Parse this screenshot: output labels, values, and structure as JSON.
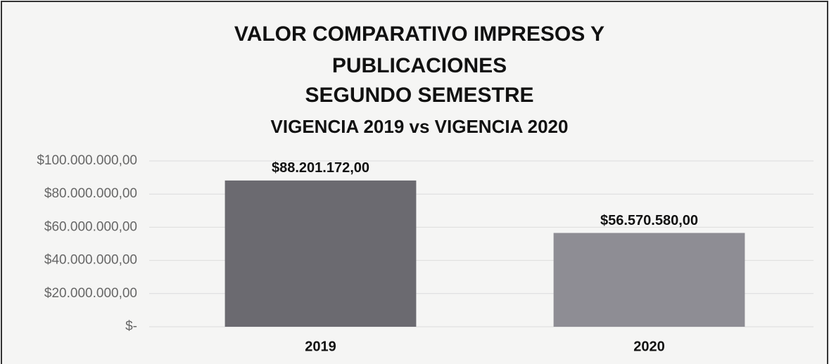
{
  "chart_data": {
    "type": "bar",
    "title": [
      "VALOR COMPARATIVO IMPRESOS Y",
      "PUBLICACIONES",
      "SEGUNDO SEMESTRE"
    ],
    "subtitle": "VIGENCIA 2019 vs VIGENCIA 2020",
    "categories": [
      "2019",
      "2020"
    ],
    "values": [
      88201172,
      56570580
    ],
    "value_labels": [
      "$88.201.172,00",
      "$56.570.580,00"
    ],
    "colors": [
      "#6b6a70",
      "#8e8d94"
    ],
    "ylim": [
      0,
      100000000
    ],
    "yticks": [
      {
        "value": 0,
        "label": "$-"
      },
      {
        "value": 20000000,
        "label": "$20.000.000,00"
      },
      {
        "value": 40000000,
        "label": "$40.000.000,00"
      },
      {
        "value": 60000000,
        "label": "$60.000.000,00"
      },
      {
        "value": 80000000,
        "label": "$80.000.000,00"
      },
      {
        "value": 100000000,
        "label": "$100.000.000,00"
      }
    ],
    "grid": true
  }
}
